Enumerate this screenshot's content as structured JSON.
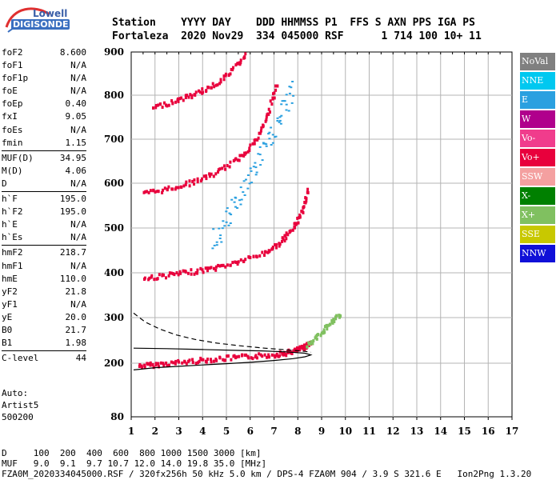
{
  "logo": {
    "brand": "Lowell",
    "product": "DIGISONDE"
  },
  "header": {
    "line1": "Station    YYYY DAY    DDD HHMMSS P1  FFS S AXN PPS IGA PS",
    "line2": "Fortaleza  2020 Nov29  334 045000 RSF      1 714 100 10+ 11"
  },
  "params": [
    {
      "name": "foF2",
      "value": "8.600"
    },
    {
      "name": "foF1",
      "value": "N/A"
    },
    {
      "name": "foF1p",
      "value": "N/A"
    },
    {
      "name": "foE",
      "value": "N/A"
    },
    {
      "name": "foEp",
      "value": "0.40"
    },
    {
      "name": "fxI",
      "value": "9.05"
    },
    {
      "name": "foEs",
      "value": "N/A"
    },
    {
      "name": "fmin",
      "value": "1.15"
    },
    {
      "name": "MUF(D)",
      "value": "34.95",
      "sep": true
    },
    {
      "name": "M(D)",
      "value": "4.06"
    },
    {
      "name": "D",
      "value": "N/A"
    },
    {
      "name": "h`F",
      "value": "195.0",
      "sep": true
    },
    {
      "name": "h`F2",
      "value": "195.0"
    },
    {
      "name": "h`E",
      "value": "N/A"
    },
    {
      "name": "h`Es",
      "value": "N/A"
    },
    {
      "name": "hmF2",
      "value": "218.7",
      "sep": true
    },
    {
      "name": "hmF1",
      "value": "N/A"
    },
    {
      "name": "hmE",
      "value": "110.0"
    },
    {
      "name": "yF2",
      "value": "21.8"
    },
    {
      "name": "yF1",
      "value": "N/A"
    },
    {
      "name": "yE",
      "value": "20.0"
    },
    {
      "name": "B0",
      "value": "21.7"
    },
    {
      "name": "B1",
      "value": "1.98"
    },
    {
      "name": "C-level",
      "value": "44",
      "sep": true
    }
  ],
  "auto": {
    "line1": "Auto:",
    "line2": "Artist5",
    "line3": "500200"
  },
  "footer": {
    "line1": "D     100  200  400  600  800 1000 1500 3000 [km]",
    "line2": "MUF   9.0  9.1  9.7 10.7 12.0 14.0 19.8 35.0 [MHz]",
    "line3": "FZA0M_2020334045000.RSF / 320fx256h 50 kHz 5.0 km / DPS-4 FZA0M 904 / 3.9 S 321.6 E   Ion2Png 1.3.20"
  },
  "legend": [
    {
      "label": "NoVal",
      "color": "#808080"
    },
    {
      "label": "NNE",
      "color": "#00c8f0"
    },
    {
      "label": "E",
      "color": "#2aa0e0"
    },
    {
      "label": "W",
      "color": "#b0008c"
    },
    {
      "label": "Vo-",
      "color": "#f03c8c"
    },
    {
      "label": "Vo+",
      "color": "#e8003c"
    },
    {
      "label": "SSW",
      "color": "#f4a0a0"
    },
    {
      "label": "X-",
      "color": "#008000"
    },
    {
      "label": "X+",
      "color": "#80c060"
    },
    {
      "label": "SSE",
      "color": "#c8c800"
    },
    {
      "label": "NNW",
      "color": "#1010d8"
    }
  ],
  "chart_data": {
    "type": "scatter",
    "xlabel": "",
    "ylabel": "",
    "xlim": [
      1,
      17
    ],
    "ylim": [
      80,
      900
    ],
    "xticks": [
      "1",
      "2",
      "3",
      "4",
      "5",
      "6",
      "7",
      "8",
      "9",
      "10",
      "11",
      "12",
      "13",
      "14",
      "15",
      "16",
      "17"
    ],
    "yticks": [
      "80",
      "200",
      "300",
      "400",
      "500",
      "600",
      "700",
      "800",
      "900"
    ],
    "grid": true,
    "traces": [
      {
        "name": "Vo+",
        "hop": "1F",
        "x": [
          1.3,
          2.0,
          3.0,
          4.0,
          5.0,
          6.0,
          7.0,
          7.5,
          7.9,
          8.2,
          8.5
        ],
        "y": [
          197,
          200,
          205,
          210,
          214,
          218,
          222,
          226,
          231,
          238,
          248
        ]
      },
      {
        "name": "Vo+",
        "hop": "2F",
        "x": [
          1.5,
          2.5,
          3.5,
          4.5,
          5.5,
          6.5,
          7.2,
          7.7,
          8.1,
          8.4
        ],
        "y": [
          390,
          398,
          405,
          414,
          428,
          446,
          468,
          498,
          535,
          590
        ]
      },
      {
        "name": "Vo+",
        "hop": "3F",
        "x": [
          1.5,
          2.5,
          3.5,
          4.5,
          5.5,
          6.2,
          6.7,
          7.1
        ],
        "y": [
          580,
          590,
          605,
          625,
          660,
          700,
          760,
          830
        ]
      },
      {
        "name": "Vo+",
        "hop": "4F",
        "x": [
          1.9,
          2.8,
          3.6,
          4.4,
          5.2,
          5.8
        ],
        "y": [
          775,
          790,
          805,
          825,
          860,
          900
        ]
      },
      {
        "name": "E",
        "hop": "oblique",
        "x": [
          4.4,
          5.0,
          5.6,
          6.2,
          6.8,
          7.3,
          7.8
        ],
        "y": [
          470,
          520,
          580,
          640,
          700,
          760,
          820
        ]
      },
      {
        "name": "X+",
        "hop": "1F",
        "x": [
          8.3,
          8.8,
          9.3,
          9.8
        ],
        "y": [
          240,
          262,
          290,
          310
        ]
      }
    ],
    "profile_solid": {
      "x": [
        1.1,
        2.0,
        3.0,
        4.0,
        5.0,
        6.0,
        7.0,
        7.8,
        8.3,
        8.55,
        8.3,
        7.5,
        6.5,
        5.5,
        4.0,
        2.5,
        1.1
      ],
      "y": [
        185,
        190,
        193,
        196,
        199,
        202,
        206,
        210,
        214,
        218,
        222,
        225,
        227,
        228,
        230,
        232,
        233
      ]
    },
    "profile_dashed": {
      "x": [
        1.1,
        1.6,
        2.2,
        2.9,
        3.7,
        4.6,
        5.6,
        6.6,
        7.6,
        8.3,
        8.55
      ],
      "y": [
        310,
        290,
        275,
        262,
        252,
        244,
        238,
        233,
        229,
        226,
        224
      ]
    }
  }
}
